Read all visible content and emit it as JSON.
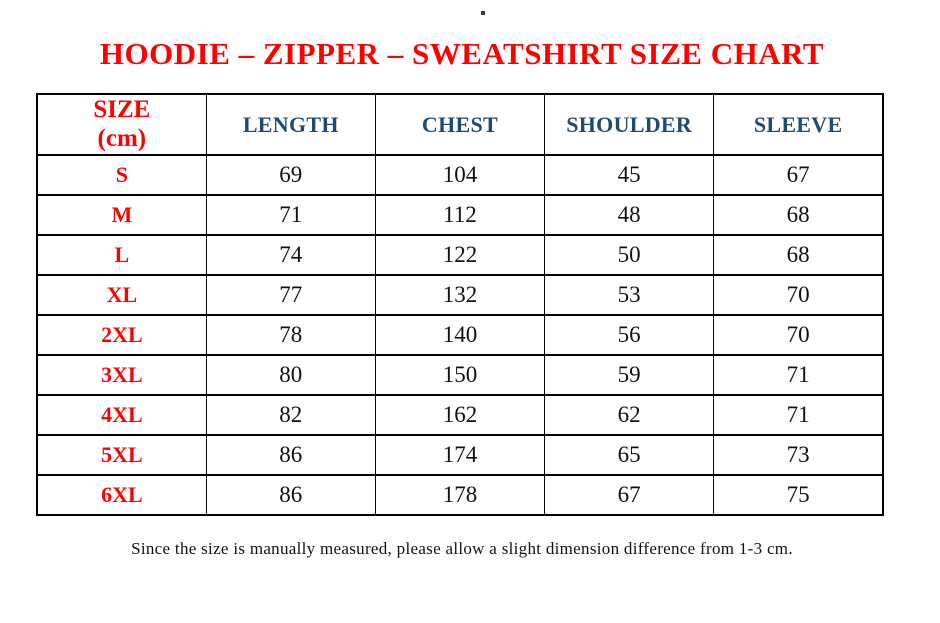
{
  "title": "HOODIE – ZIPPER – SWEATSHIRT SIZE CHART",
  "table": {
    "header": {
      "size_title": "SIZE",
      "size_unit": "(cm)",
      "columns": [
        "LENGTH",
        "CHEST",
        "SHOULDER",
        "SLEEVE"
      ]
    },
    "rows": [
      {
        "size": "S",
        "length": "69",
        "chest": "104",
        "shoulder": "45",
        "sleeve": "67"
      },
      {
        "size": "M",
        "length": "71",
        "chest": "112",
        "shoulder": "48",
        "sleeve": "68"
      },
      {
        "size": "L",
        "length": "74",
        "chest": "122",
        "shoulder": "50",
        "sleeve": "68"
      },
      {
        "size": "XL",
        "length": "77",
        "chest": "132",
        "shoulder": "53",
        "sleeve": "70"
      },
      {
        "size": "2XL",
        "length": "78",
        "chest": "140",
        "shoulder": "56",
        "sleeve": "70"
      },
      {
        "size": "3XL",
        "length": "80",
        "chest": "150",
        "shoulder": "59",
        "sleeve": "71"
      },
      {
        "size": "4XL",
        "length": "82",
        "chest": "162",
        "shoulder": "62",
        "sleeve": "71"
      },
      {
        "size": "5XL",
        "length": "86",
        "chest": "174",
        "shoulder": "65",
        "sleeve": "73"
      },
      {
        "size": "6XL",
        "length": "86",
        "chest": "178",
        "shoulder": "67",
        "sleeve": "75"
      }
    ]
  },
  "footnote": "Since the size is manually measured, please allow a slight dimension difference from 1-3 cm.",
  "colors": {
    "title_red": "#ff0000",
    "header_blue": "#1f4a73",
    "body_text": "#111111",
    "border": "#000000"
  }
}
